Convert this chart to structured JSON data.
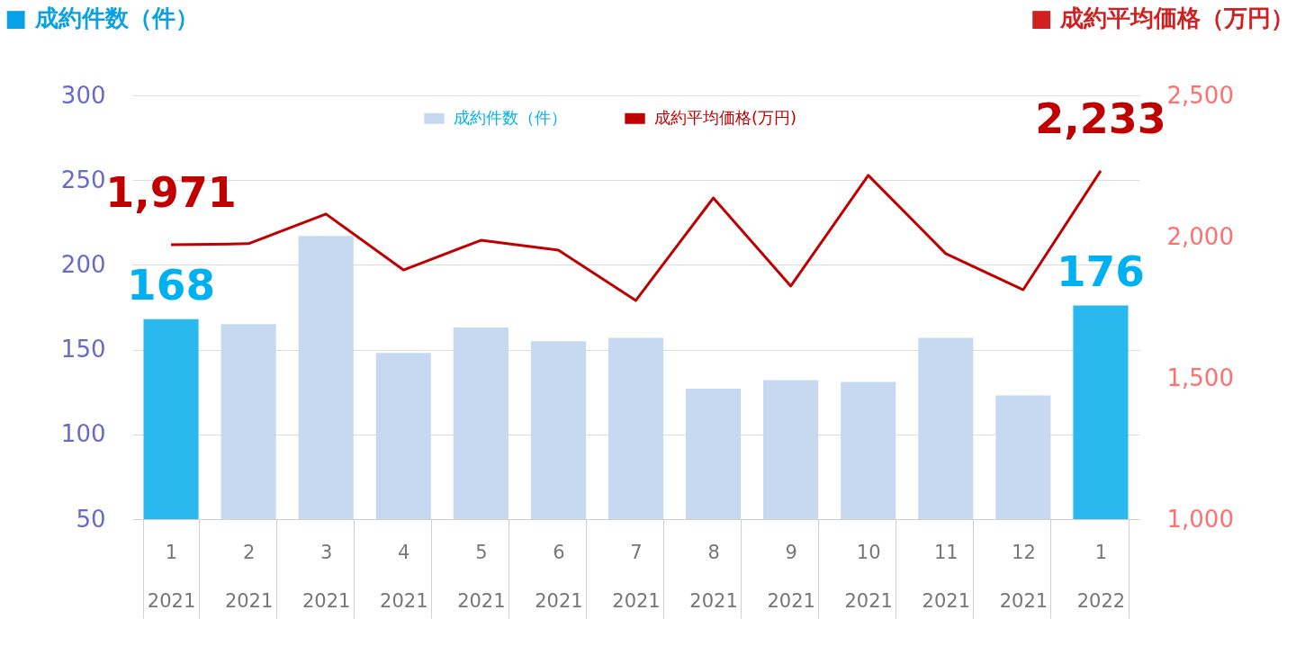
{
  "chart_data": {
    "type": "bar",
    "ylabel": "■ 成約件数（件）",
    "y2label": "■ 成約平均価格（万円）",
    "categories": [
      "1 2021",
      "2 2021",
      "3 2021",
      "4 2021",
      "5 2021",
      "6 2021",
      "7 2021",
      "8 2021",
      "9 2021",
      "10 2021",
      "11 2021",
      "12 2021",
      "1 2022"
    ],
    "series": [
      {
        "name": "成約件数（件）",
        "color": "#c6d9f1",
        "colors": [
          "#29b9ee",
          "#c6d9f1",
          "#c6d9f1",
          "#c6d9f1",
          "#c6d9f1",
          "#c6d9f1",
          "#c6d9f1",
          "#c6d9f1",
          "#c6d9f1",
          "#c6d9f1",
          "#c6d9f1",
          "#c6d9f1",
          "#29b9ee"
        ],
        "values": [
          168,
          165,
          217,
          148,
          163,
          155,
          157,
          127,
          132,
          131,
          157,
          123,
          176
        ],
        "value_labels": [
          "168",
          null,
          null,
          null,
          null,
          null,
          null,
          null,
          null,
          null,
          null,
          null,
          "176"
        ]
      },
      {
        "name": "成約平均価格(万円)",
        "type": "line",
        "axis": "y2",
        "color": "#c00000",
        "values": [
          1971,
          1975,
          2080,
          1882,
          1987,
          1952,
          1774,
          2137,
          1825,
          2217,
          1940,
          1812,
          2233
        ],
        "value_labels": [
          "1,971",
          null,
          null,
          null,
          null,
          null,
          null,
          null,
          null,
          null,
          null,
          null,
          "2,233"
        ]
      }
    ],
    "ylim": [
      50,
      300
    ],
    "yticks": [
      50,
      100,
      150,
      200,
      250,
      300
    ],
    "y2lim": [
      1000,
      2500
    ],
    "y2ticks": [
      {
        "value": 1000,
        "label": "1,000"
      },
      {
        "value": 1500,
        "label": "1,500"
      },
      {
        "value": 2000,
        "label": "2,000"
      },
      {
        "value": 2500,
        "label": "2,500"
      }
    ],
    "grid": "y",
    "legend": "top",
    "marker": "none",
    "line_style": "solid"
  }
}
